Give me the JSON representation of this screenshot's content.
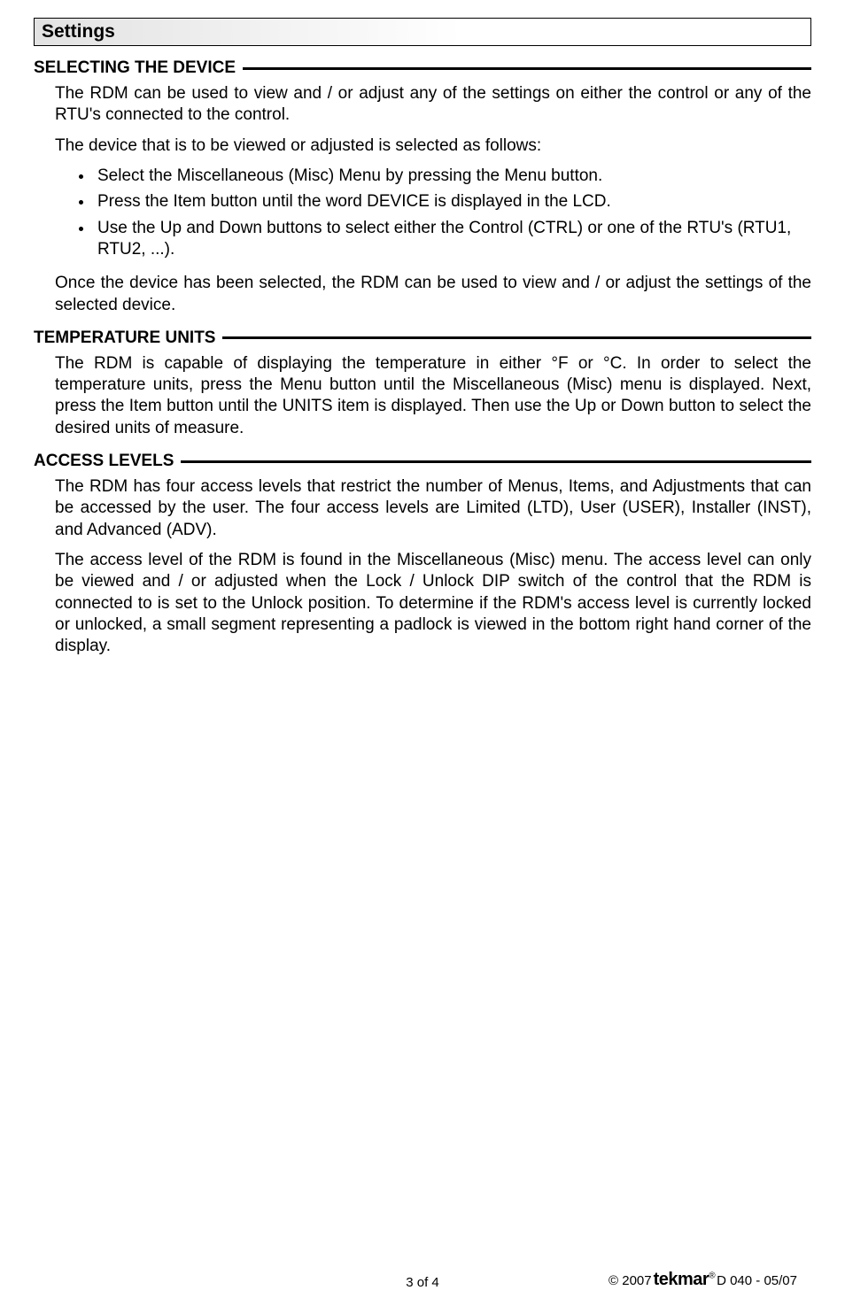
{
  "header": {
    "title": "Settings"
  },
  "sections": {
    "selecting": {
      "title": "SELECTING THE DEVICE",
      "p1": "The RDM can be used to view and / or adjust any of the settings on either the control or any of the RTU's connected to the control.",
      "p2": "The device that is to be viewed or adjusted is selected as follows:",
      "bullets": {
        "b1": "Select the Miscellaneous (Misc) Menu by pressing the Menu button.",
        "b2": "Press the Item button until the word DEVICE is displayed in the LCD.",
        "b3": "Use the Up and Down buttons to select either the Control (CTRL) or one of the RTU's (RTU1, RTU2, ...)."
      },
      "p3": "Once the device has been selected, the RDM can be used to view and / or adjust the settings of the selected device."
    },
    "temperature": {
      "title": "TEMPERATURE UNITS",
      "p1": "The RDM is capable of displaying the temperature in either °F or °C. In order to select the temperature units, press the Menu button until the Miscellaneous (Misc) menu is displayed. Next, press the Item button until the UNITS item is displayed. Then use the Up or Down button to select the desired units of measure."
    },
    "access": {
      "title": "ACCESS LEVELS",
      "p1": "The RDM has four access levels that restrict the number of Menus, Items, and Adjustments that can be accessed by the user. The four access levels are Limited (LTD), User (USER), Installer (INST), and Advanced (ADV).",
      "p2": "The access level of the RDM is found in the Miscellaneous (Misc) menu. The access level can only be viewed and / or adjusted when the Lock / Unlock DIP switch of the control that the RDM is connected to is set to the Unlock position. To determine if the RDM's access level is currently locked or unlocked, a small segment representing a padlock is viewed in the bottom right hand corner of the display."
    }
  },
  "footer": {
    "page": "3 of 4",
    "copyright_prefix": "© 2007 ",
    "brand": "tekmar",
    "doc": "  D 040 - 05/07"
  }
}
